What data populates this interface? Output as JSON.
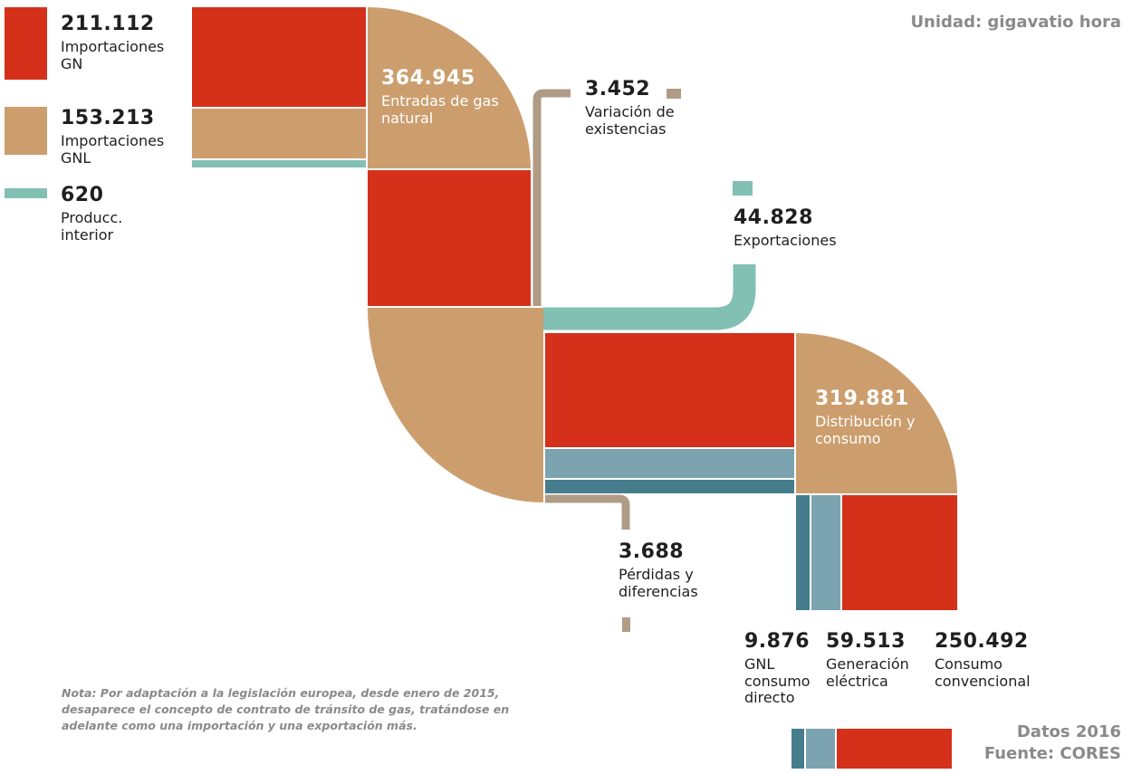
{
  "unit_label": "Unidad: gigavatio hora",
  "colors": {
    "gn": "#d4301a",
    "gnl": "#cc9e6e",
    "prod": "#82c0b4",
    "stock": "#b09b86",
    "steel": "#7ba3b0",
    "dark": "#457d8c"
  },
  "legend": [
    {
      "value": "211.112",
      "label": "Importaciones GN",
      "color": "gn"
    },
    {
      "value": "153.213",
      "label": "Importaciones GNL",
      "color": "gnl"
    },
    {
      "value": "620",
      "label": "Producc. interior",
      "color": "prod"
    }
  ],
  "nodes": {
    "entradas": {
      "value": "364.945",
      "label": "Entradas de gas natural"
    },
    "variacion": {
      "value": "3.452",
      "label": "Variación de existencias"
    },
    "exportaciones": {
      "value": "44.828",
      "label": "Exportaciones"
    },
    "distribucion": {
      "value": "319.881",
      "label": "Distribución y consumo"
    },
    "perdidas": {
      "value": "3.688",
      "label": "Pérdidas y diferencias"
    },
    "gnl_directo": {
      "value": "9.876",
      "label": "GNL consumo directo"
    },
    "generacion": {
      "value": "59.513",
      "label": "Generación eléctrica"
    },
    "convencional": {
      "value": "250.492",
      "label": "Consumo convencional"
    }
  },
  "note": "Nota: Por adaptación a la legislación europea, desde enero de 2015, desaparece el concepto de contrato de tránsito de gas, tratándose en adelante como una importación y una exportación más.",
  "footer": {
    "year": "Datos 2016",
    "source": "Fuente: CORES"
  }
}
